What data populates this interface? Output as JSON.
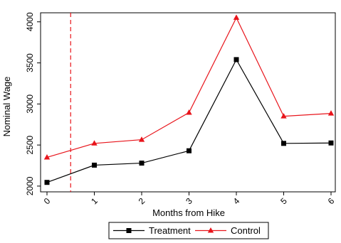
{
  "chart_data": {
    "type": "line",
    "title": "",
    "xlabel": "Months from Hike",
    "ylabel": "Nominal Wage",
    "x": [
      0,
      1,
      2,
      3,
      4,
      5,
      6
    ],
    "xlim": [
      0,
      6
    ],
    "ylim": [
      1930,
      4110
    ],
    "xticks": [
      "0",
      "1",
      "2",
      "3",
      "4",
      "5",
      "6"
    ],
    "yticks": [
      "2000",
      "2500",
      "3000",
      "3500",
      "4000"
    ],
    "grid": false,
    "legend_position": "bottom-center",
    "reference_line": {
      "x": 0.5,
      "style": "dashed",
      "color": "#e8141b"
    },
    "series": [
      {
        "name": "Treatment",
        "marker": "square",
        "color": "#000000",
        "values": [
          2045,
          2255,
          2280,
          2430,
          3540,
          2520,
          2525
        ]
      },
      {
        "name": "Control",
        "marker": "triangle",
        "color": "#e8141b",
        "values": [
          2350,
          2520,
          2565,
          2895,
          4050,
          2850,
          2885
        ]
      }
    ]
  }
}
